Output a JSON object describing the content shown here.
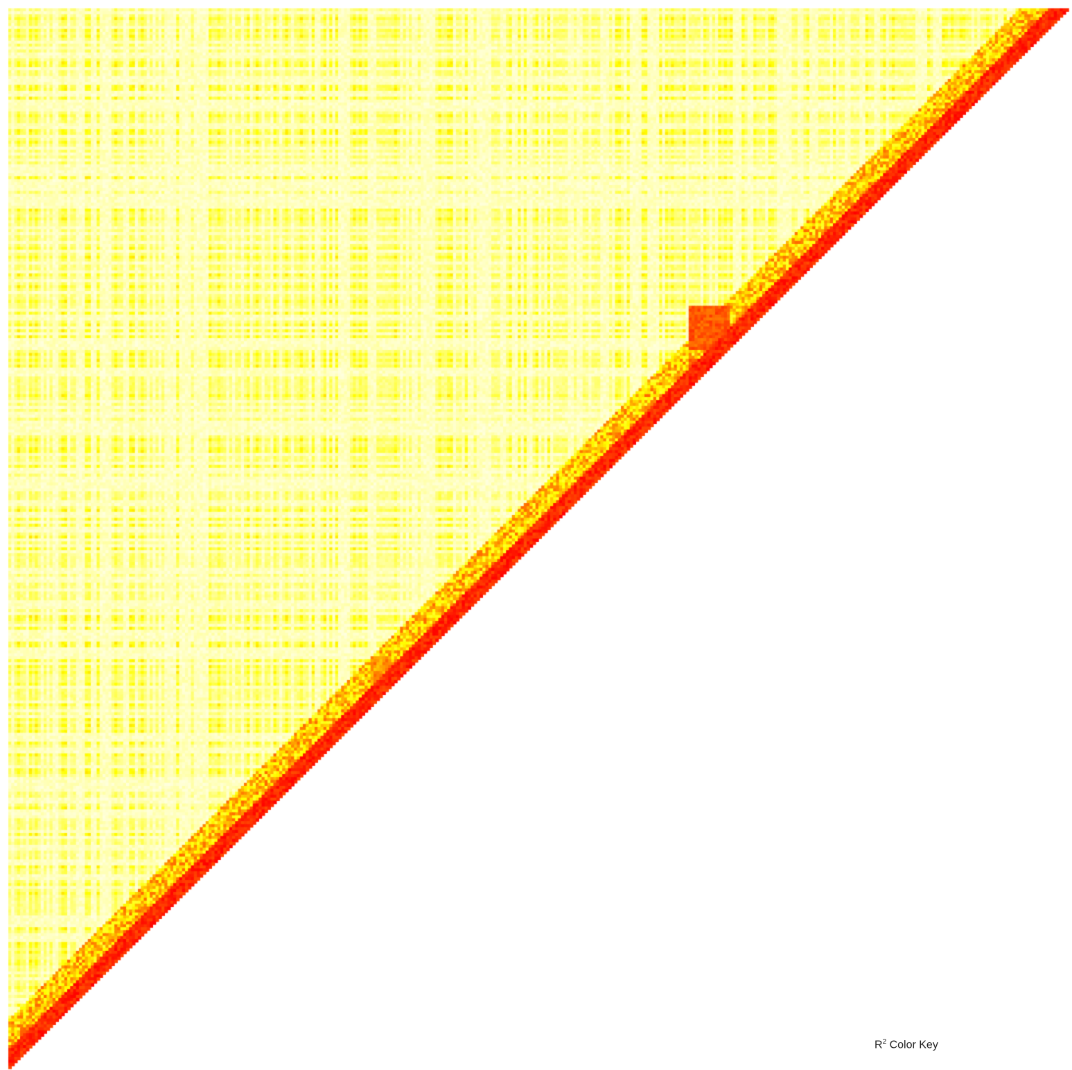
{
  "chart_data": {
    "type": "heatmap",
    "title": "",
    "xlabel": "",
    "ylabel": "",
    "matrix_shape": "upper-triangle",
    "value_name": "R2",
    "value_range": [
      0,
      1
    ],
    "color_scale": [
      "#ffffe0",
      "#ffff00",
      "#ff0000"
    ],
    "high_ld_blocks": [
      {
        "row_range": [
          0.28,
          0.32
        ],
        "col_range": [
          0.64,
          0.68
        ],
        "r2": 0.9
      },
      {
        "row_range": [
          0.28,
          0.32
        ],
        "col_range": [
          0.69,
          0.73
        ],
        "r2": 0.8
      },
      {
        "row_range": [
          0.33,
          0.36
        ],
        "col_range": [
          0.64,
          0.67
        ],
        "r2": 0.9
      },
      {
        "row_range": [
          0.61,
          0.66
        ],
        "col_range": [
          0.34,
          0.36
        ],
        "r2": 0.75
      },
      {
        "row_range": [
          0.01,
          0.03
        ],
        "col_range": [
          0.96,
          0.99
        ],
        "r2": 0.85
      },
      {
        "row_range": [
          0.96,
          0.99
        ],
        "col_range": [
          0.01,
          0.04
        ],
        "r2": 0.85
      }
    ]
  },
  "legend": {
    "label_main": "R",
    "label_sup": "2",
    "label_rest": " Color Key"
  }
}
